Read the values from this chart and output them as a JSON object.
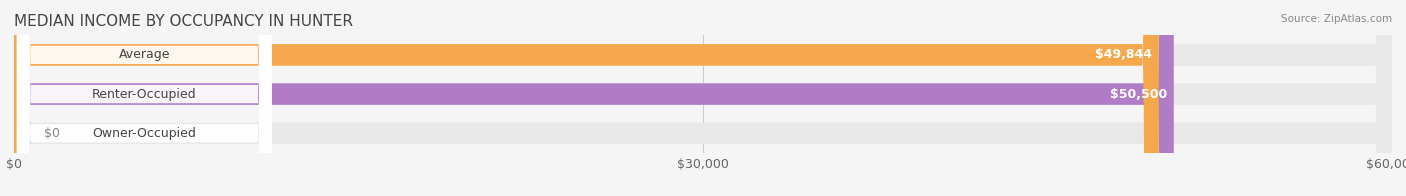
{
  "title": "MEDIAN INCOME BY OCCUPANCY IN HUNTER",
  "source": "Source: ZipAtlas.com",
  "categories": [
    "Owner-Occupied",
    "Renter-Occupied",
    "Average"
  ],
  "values": [
    0,
    50500,
    49844
  ],
  "bar_colors": [
    "#6dcdd0",
    "#b07cc6",
    "#f5a84b"
  ],
  "label_colors": [
    "#6dcdd0",
    "#b07cc6",
    "#f5a84b"
  ],
  "value_labels": [
    "$0",
    "$50,500",
    "$49,844"
  ],
  "xlim": [
    0,
    60000
  ],
  "xticks": [
    0,
    30000,
    60000
  ],
  "xticklabels": [
    "$0",
    "$30,000",
    "$60,000"
  ],
  "bar_height": 0.55,
  "background_color": "#f5f5f5",
  "bar_bg_color": "#e8e8e8",
  "title_fontsize": 11,
  "label_fontsize": 9,
  "tick_fontsize": 9
}
